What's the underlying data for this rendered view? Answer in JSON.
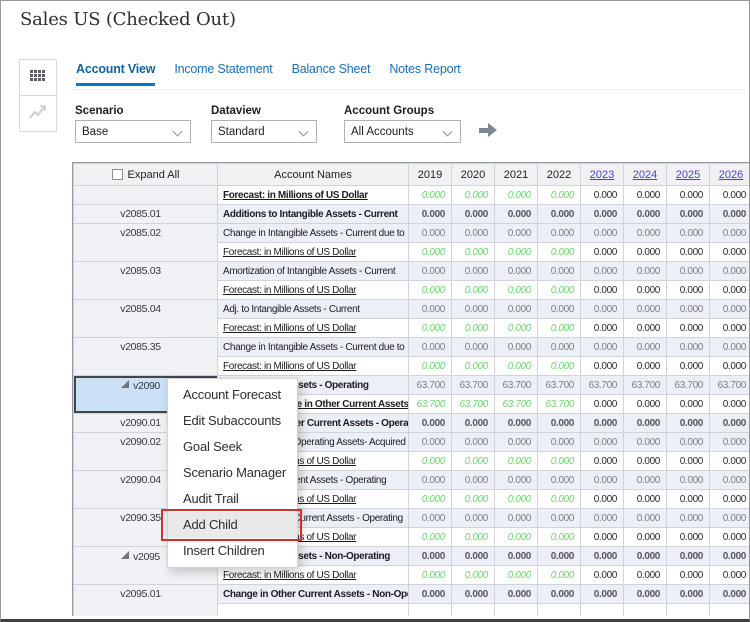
{
  "title": "Sales US (Checked Out)",
  "tabs": [
    {
      "label": "Account View",
      "active": true
    },
    {
      "label": "Income Statement",
      "active": false
    },
    {
      "label": "Balance Sheet",
      "active": false
    },
    {
      "label": "Notes Report",
      "active": false
    }
  ],
  "sidebar": {
    "buttons": [
      {
        "icon": "grid-view-icon"
      },
      {
        "icon": "chart-view-icon",
        "disabled": true
      }
    ]
  },
  "filters": [
    {
      "label": "Scenario",
      "value": "Base"
    },
    {
      "label": "Dataview",
      "value": "Standard"
    },
    {
      "label": "Account Groups",
      "value": "All Accounts"
    }
  ],
  "colors": {
    "tab_accent": "#0b72c9",
    "link_blue": "#2626cf",
    "year_link_blue": "#4343d0",
    "forecast_green": "#6fd66f",
    "selected_cell_bg": "#cbe2f6",
    "highlight_border_red": "#d0312a"
  },
  "table": {
    "header": {
      "expand_all": "Expand All",
      "account_names": "Account Names",
      "years": [
        "2019",
        "2020",
        "2021",
        "2022",
        "2023",
        "2024",
        "2025",
        "2026"
      ],
      "link_years": [
        "2023",
        "2024",
        "2025",
        "2026"
      ]
    },
    "rows": [
      {
        "code": "",
        "span": 1,
        "name": "Forecast: in Millions of US Dollar",
        "ns": "lb",
        "vs": "f",
        "type": "fcst",
        "vals": [
          "0.000",
          "0.000",
          "0.000",
          "0.000",
          "0.000",
          "0.000",
          "0.000",
          "0.000"
        ]
      },
      {
        "code": "v2085.01",
        "span": 1,
        "name": "Additions to Intangible Assets - Current",
        "ns": "b",
        "vs": "b",
        "type": "acct",
        "vals": [
          "0.000",
          "0.000",
          "0.000",
          "0.000",
          "0.000",
          "0.000",
          "0.000",
          "0.000"
        ]
      },
      {
        "code": "v2085.02",
        "span": 2,
        "name": "Change in Intangible Assets - Current due to",
        "ns": "n",
        "vs": "p",
        "type": "acct",
        "vals": [
          "0.000",
          "0.000",
          "0.000",
          "0.000",
          "0.000",
          "0.000",
          "0.000",
          "0.000"
        ]
      },
      {
        "name": "Forecast: in Millions of US Dollar",
        "ns": "l",
        "vs": "f",
        "type": "fcst",
        "vals": [
          "0.000",
          "0.000",
          "0.000",
          "0.000",
          "0.000",
          "0.000",
          "0.000",
          "0.000"
        ]
      },
      {
        "code": "v2085.03",
        "span": 2,
        "name": "Amortization of Intangible Assets - Current",
        "ns": "n",
        "vs": "p",
        "type": "acct",
        "vals": [
          "0.000",
          "0.000",
          "0.000",
          "0.000",
          "0.000",
          "0.000",
          "0.000",
          "0.000"
        ]
      },
      {
        "name": "Forecast: in Millions of US Dollar",
        "ns": "l",
        "vs": "f",
        "type": "fcst",
        "vals": [
          "0.000",
          "0.000",
          "0.000",
          "0.000",
          "0.000",
          "0.000",
          "0.000",
          "0.000"
        ]
      },
      {
        "code": "v2085.04",
        "span": 2,
        "name": "Adj. to Intangible Assets - Current",
        "ns": "n",
        "vs": "p",
        "type": "acct",
        "vals": [
          "0.000",
          "0.000",
          "0.000",
          "0.000",
          "0.000",
          "0.000",
          "0.000",
          "0.000"
        ]
      },
      {
        "name": "Forecast: in Millions of US Dollar",
        "ns": "l",
        "vs": "f",
        "type": "fcst",
        "vals": [
          "0.000",
          "0.000",
          "0.000",
          "0.000",
          "0.000",
          "0.000",
          "0.000",
          "0.000"
        ]
      },
      {
        "code": "v2085.35",
        "span": 2,
        "name": "Change in Intangible Assets - Current due to",
        "ns": "n",
        "vs": "p",
        "type": "acct",
        "vals": [
          "0.000",
          "0.000",
          "0.000",
          "0.000",
          "0.000",
          "0.000",
          "0.000",
          "0.000"
        ]
      },
      {
        "name": "Forecast: in Millions of US Dollar",
        "ns": "l",
        "vs": "f",
        "type": "fcst",
        "vals": [
          "0.000",
          "0.000",
          "0.000",
          "0.000",
          "0.000",
          "0.000",
          "0.000",
          "0.000"
        ]
      },
      {
        "code": "v2090",
        "span": 2,
        "parent": true,
        "selected": true,
        "name": "Other Current Assets - Operating",
        "ns": "b",
        "vs": "p",
        "type": "acct",
        "vals": [
          "63.700",
          "63.700",
          "63.700",
          "63.700",
          "63.700",
          "63.700",
          "63.700",
          "63.700"
        ]
      },
      {
        "name": "Forecast: Change in Other Current Assets",
        "ns": "lb",
        "vs": "f",
        "type": "fcst",
        "vals": [
          "63.700",
          "63.700",
          "63.700",
          "63.700",
          "0.000",
          "0.000",
          "0.000",
          "0.000"
        ]
      },
      {
        "code": "v2090.01",
        "span": 1,
        "name": "Additions to Other Current Assets - Operating",
        "ns": "b",
        "vs": "b",
        "type": "acct",
        "vals": [
          "0.000",
          "0.000",
          "0.000",
          "0.000",
          "0.000",
          "0.000",
          "0.000",
          "0.000"
        ]
      },
      {
        "code": "v2090.02",
        "span": 2,
        "name": "Change in Other Operating Assets- Acquired",
        "ns": "n",
        "vs": "p",
        "type": "acct",
        "vals": [
          "0.000",
          "0.000",
          "0.000",
          "0.000",
          "0.000",
          "0.000",
          "0.000",
          "0.000"
        ]
      },
      {
        "name": "Forecast: in Millions of US Dollar",
        "ns": "l",
        "vs": "f",
        "type": "fcst",
        "vals": [
          "0.000",
          "0.000",
          "0.000",
          "0.000",
          "0.000",
          "0.000",
          "0.000",
          "0.000"
        ]
      },
      {
        "code": "v2090.04",
        "span": 2,
        "name": "Adj. to Other Current Assets - Operating",
        "ns": "n",
        "vs": "p",
        "type": "acct",
        "vals": [
          "0.000",
          "0.000",
          "0.000",
          "0.000",
          "0.000",
          "0.000",
          "0.000",
          "0.000"
        ]
      },
      {
        "name": "Forecast: in Millions of US Dollar",
        "ns": "l",
        "vs": "f",
        "type": "fcst",
        "vals": [
          "0.000",
          "0.000",
          "0.000",
          "0.000",
          "0.000",
          "0.000",
          "0.000",
          "0.000"
        ]
      },
      {
        "code": "v2090.35",
        "span": 2,
        "name": "Change in Other Current Assets - Operating",
        "ns": "n",
        "vs": "p",
        "type": "acct",
        "vals": [
          "0.000",
          "0.000",
          "0.000",
          "0.000",
          "0.000",
          "0.000",
          "0.000",
          "0.000"
        ]
      },
      {
        "name": "Forecast: in Millions of US Dollar",
        "ns": "l",
        "vs": "f",
        "type": "fcst",
        "vals": [
          "0.000",
          "0.000",
          "0.000",
          "0.000",
          "0.000",
          "0.000",
          "0.000",
          "0.000"
        ]
      },
      {
        "code": "v2095",
        "span": 2,
        "parent": true,
        "name": "Other Current Assets - Non-Operating",
        "ns": "b",
        "vs": "b",
        "type": "acct",
        "vals": [
          "0.000",
          "0.000",
          "0.000",
          "0.000",
          "0.000",
          "0.000",
          "0.000",
          "0.000"
        ]
      },
      {
        "name": "Forecast: in Millions of US Dollar",
        "ns": "l",
        "vs": "f",
        "type": "fcst",
        "vals": [
          "0.000",
          "0.000",
          "0.000",
          "0.000",
          "0.000",
          "0.000",
          "0.000",
          "0.000"
        ]
      },
      {
        "code": "v2095.01",
        "span": 2,
        "name": "Change in Other Current Assets - Non-Operating",
        "ns": "b",
        "vs": "b",
        "type": "acct",
        "vals": [
          "0.000",
          "0.000",
          "0.000",
          "0.000",
          "0.000",
          "0.000",
          "0.000",
          "0.000"
        ]
      },
      {
        "name": "",
        "ns": "l",
        "vs": "f",
        "type": "fcst",
        "vals": [
          "",
          "",
          "",
          "",
          "",
          "",
          "",
          ""
        ]
      }
    ]
  },
  "context_menu": {
    "items": [
      "Account Forecast",
      "Edit Subaccounts",
      "Goal Seek",
      "Scenario Manager",
      "Audit Trail",
      "Add Child",
      "Insert Children"
    ],
    "highlighted": "Add Child"
  }
}
